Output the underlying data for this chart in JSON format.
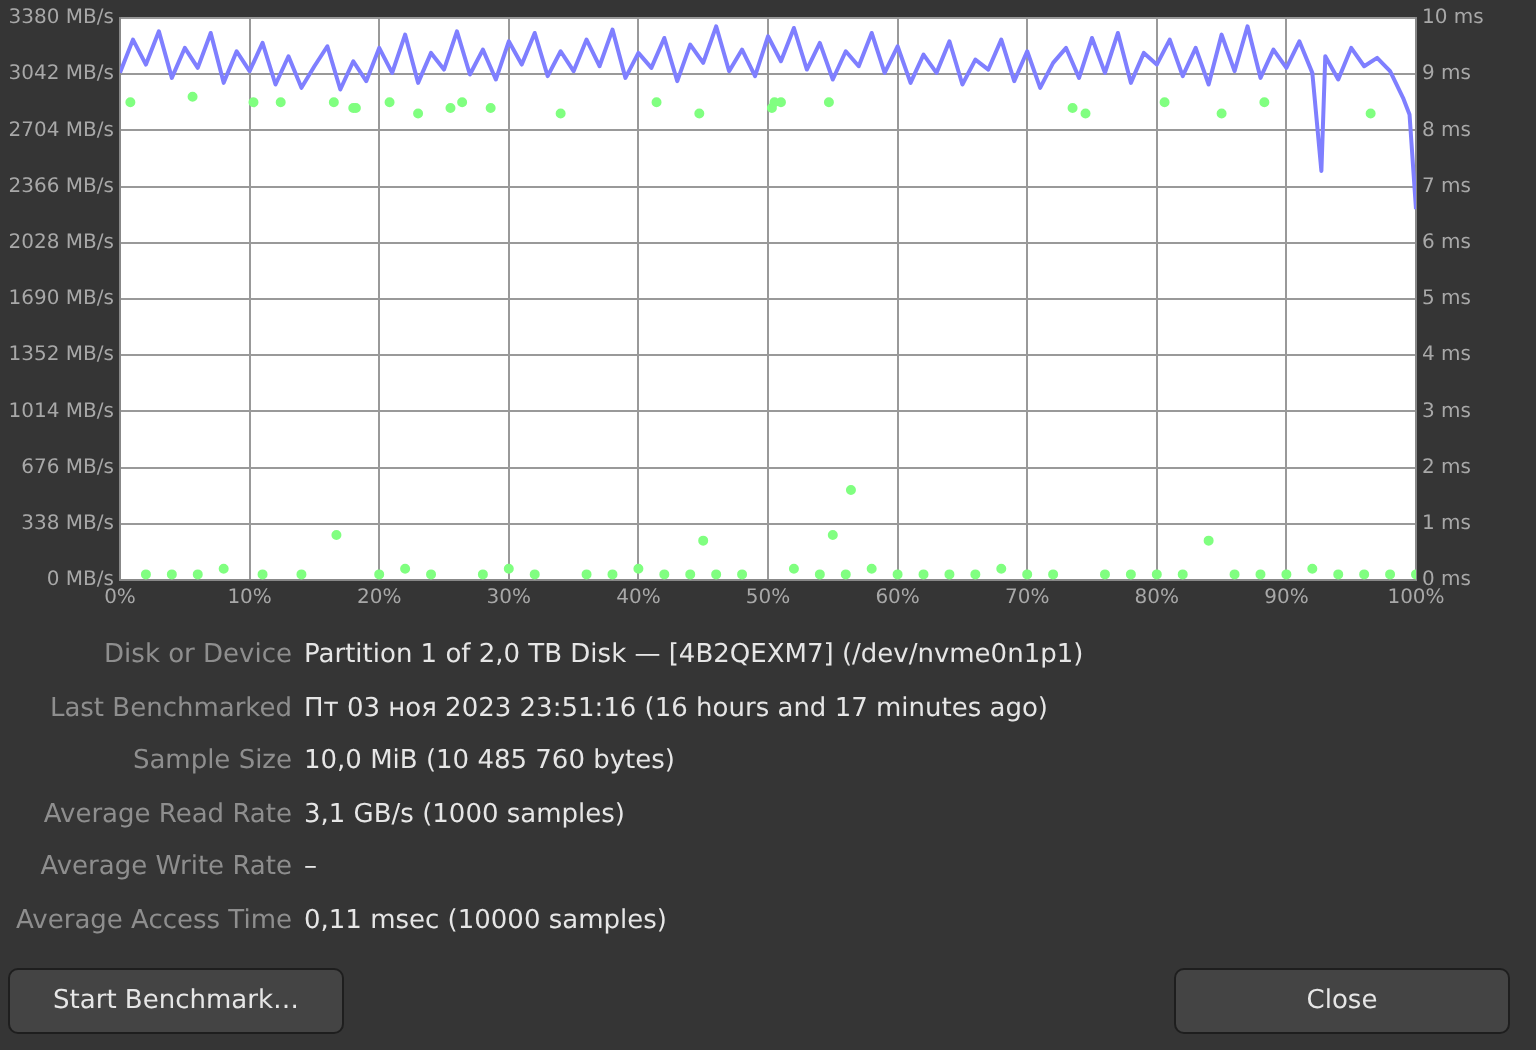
{
  "chart_data": {
    "type": "line",
    "xlim": [
      0,
      100
    ],
    "xticks": [
      {
        "value": 0,
        "label": "0%"
      },
      {
        "value": 10,
        "label": "10%"
      },
      {
        "value": 20,
        "label": "20%"
      },
      {
        "value": 30,
        "label": "30%"
      },
      {
        "value": 40,
        "label": "40%"
      },
      {
        "value": 50,
        "label": "50%"
      },
      {
        "value": 60,
        "label": "60%"
      },
      {
        "value": 70,
        "label": "70%"
      },
      {
        "value": 80,
        "label": "80%"
      },
      {
        "value": 90,
        "label": "90%"
      },
      {
        "value": 100,
        "label": "100%"
      }
    ],
    "ylim": [
      0,
      3380
    ],
    "yticks": [
      {
        "value": 0,
        "label": "0 MB/s"
      },
      {
        "value": 338,
        "label": "338 MB/s"
      },
      {
        "value": 676,
        "label": "676 MB/s"
      },
      {
        "value": 1014,
        "label": "1014 MB/s"
      },
      {
        "value": 1352,
        "label": "1352 MB/s"
      },
      {
        "value": 1690,
        "label": "1690 MB/s"
      },
      {
        "value": 2028,
        "label": "2028 MB/s"
      },
      {
        "value": 2366,
        "label": "2366 MB/s"
      },
      {
        "value": 2704,
        "label": "2704 MB/s"
      },
      {
        "value": 3042,
        "label": "3042 MB/s"
      },
      {
        "value": 3380,
        "label": "3380 MB/s"
      }
    ],
    "y2lim": [
      0,
      10
    ],
    "y2ticks": [
      {
        "value": 0,
        "label": "0 ms"
      },
      {
        "value": 1,
        "label": "1 ms"
      },
      {
        "value": 2,
        "label": "2 ms"
      },
      {
        "value": 3,
        "label": "3 ms"
      },
      {
        "value": 4,
        "label": "4 ms"
      },
      {
        "value": 5,
        "label": "5 ms"
      },
      {
        "value": 6,
        "label": "6 ms"
      },
      {
        "value": 7,
        "label": "7 ms"
      },
      {
        "value": 8,
        "label": "8 ms"
      },
      {
        "value": 9,
        "label": "9 ms"
      },
      {
        "value": 10,
        "label": "10 ms"
      }
    ],
    "grid": true,
    "legend": false,
    "series": [
      {
        "color": "#7f7fff",
        "marker": "none",
        "x": [
          0,
          1,
          2,
          3,
          4,
          5,
          6,
          7,
          8,
          9,
          10,
          11,
          12,
          13,
          14,
          15,
          16,
          17,
          18,
          19,
          20,
          21,
          22,
          23,
          24,
          25,
          26,
          27,
          28,
          29,
          30,
          31,
          32,
          33,
          34,
          35,
          36,
          37,
          38,
          39,
          40,
          41,
          42,
          43,
          44,
          45,
          46,
          47,
          48,
          49,
          50,
          51,
          52,
          53,
          54,
          55,
          56,
          57,
          58,
          59,
          60,
          61,
          62,
          63,
          64,
          65,
          66,
          67,
          68,
          69,
          70,
          71,
          72,
          73,
          74,
          75,
          76,
          77,
          78,
          79,
          80,
          81,
          82,
          83,
          84,
          85,
          86,
          87,
          88,
          89,
          90,
          91,
          92,
          92.7,
          93,
          94,
          95,
          96,
          97,
          98,
          99,
          99.5,
          100
        ],
        "values": [
          3050,
          3250,
          3100,
          3300,
          3020,
          3200,
          3080,
          3290,
          2990,
          3180,
          3060,
          3230,
          2980,
          3150,
          2960,
          3090,
          3210,
          2950,
          3120,
          3000,
          3200,
          3050,
          3280,
          2990,
          3170,
          3070,
          3300,
          3040,
          3190,
          3010,
          3240,
          3100,
          3290,
          3030,
          3180,
          3060,
          3250,
          3090,
          3310,
          3020,
          3170,
          3080,
          3260,
          3000,
          3220,
          3110,
          3330,
          3060,
          3190,
          3030,
          3270,
          3120,
          3320,
          3070,
          3230,
          3010,
          3180,
          3090,
          3290,
          3050,
          3210,
          2990,
          3160,
          3050,
          3240,
          2980,
          3130,
          3070,
          3250,
          3000,
          3180,
          2960,
          3110,
          3200,
          3020,
          3260,
          3050,
          3290,
          2990,
          3170,
          3100,
          3250,
          3030,
          3200,
          2980,
          3280,
          3060,
          3330,
          3020,
          3190,
          3080,
          3240,
          3050,
          2460,
          3150,
          3010,
          3200,
          3090,
          3140,
          3060,
          2900,
          2800,
          2230
        ]
      },
      {
        "type": "scatter",
        "color": "#80ff80",
        "marker": "circle",
        "axis": "y2",
        "x": [
          0.8,
          2,
          4,
          5.6,
          6,
          8,
          10.3,
          11,
          12.4,
          14,
          16.5,
          16.7,
          18,
          18.2,
          20,
          20.8,
          22,
          23,
          24,
          25.5,
          26.4,
          28,
          28.6,
          30,
          32,
          34,
          36,
          38,
          40,
          41.4,
          42,
          44,
          44.7,
          45,
          46,
          48,
          50.3,
          50.5,
          51,
          52,
          54,
          54.7,
          55,
          56,
          56.4,
          58,
          60,
          62,
          64,
          66,
          68,
          70,
          72,
          73.5,
          74.5,
          76,
          78,
          80,
          80.6,
          82,
          84,
          85,
          86,
          88,
          88.3,
          90,
          92,
          94,
          96,
          96.5,
          98,
          100
        ],
        "values": [
          8.5,
          0.1,
          0.1,
          8.6,
          0.1,
          0.2,
          8.5,
          0.1,
          8.5,
          0.1,
          8.5,
          0.8,
          8.4,
          8.4,
          0.1,
          8.5,
          0.2,
          8.3,
          0.1,
          8.4,
          8.5,
          0.1,
          8.4,
          0.2,
          0.1,
          8.3,
          0.1,
          0.1,
          0.2,
          8.5,
          0.1,
          0.1,
          8.3,
          0.7,
          0.1,
          0.1,
          8.4,
          8.5,
          8.5,
          0.2,
          0.1,
          8.5,
          0.8,
          0.1,
          1.6,
          0.2,
          0.1,
          0.1,
          0.1,
          0.1,
          0.2,
          0.1,
          0.1,
          8.4,
          8.3,
          0.1,
          0.1,
          0.1,
          8.5,
          0.1,
          0.7,
          8.3,
          0.1,
          0.1,
          8.5,
          0.1,
          0.2,
          0.1,
          0.1,
          8.3,
          0.1,
          0.1
        ]
      }
    ],
    "annotations": [
      "Disk or Device",
      "Partition 1 of 2,0 TB Disk — [4B2QEXM7] (/dev/nvme0n1p1)",
      "Last Benchmarked",
      "Пт 03 ноя 2023 23:51:16 (16 hours and 17 minutes ago)",
      "Sample Size",
      "10,0 MiB (10 485 760 bytes)",
      "Average Read Rate",
      "3,1 GB/s (1000 samples)",
      "Average Write Rate",
      "–",
      "Average Access Time",
      "0,11 msec (10000 samples)",
      "Start Benchmark…",
      "Close"
    ]
  }
}
